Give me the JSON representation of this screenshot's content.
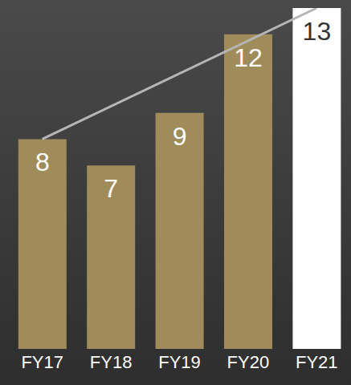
{
  "chart_data": {
    "type": "bar",
    "categories": [
      "FY17",
      "FY18",
      "FY19",
      "FY20",
      "FY21"
    ],
    "values": [
      8,
      7,
      9,
      12,
      13
    ],
    "colors": [
      "#a08c5b",
      "#a08c5b",
      "#a08c5b",
      "#a08c5b",
      "#ffffff"
    ],
    "trend": [
      8,
      null,
      null,
      null,
      13
    ],
    "ylim": [
      0,
      13
    ],
    "data_labels": true,
    "tick_labels": "x",
    "grid": false
  }
}
